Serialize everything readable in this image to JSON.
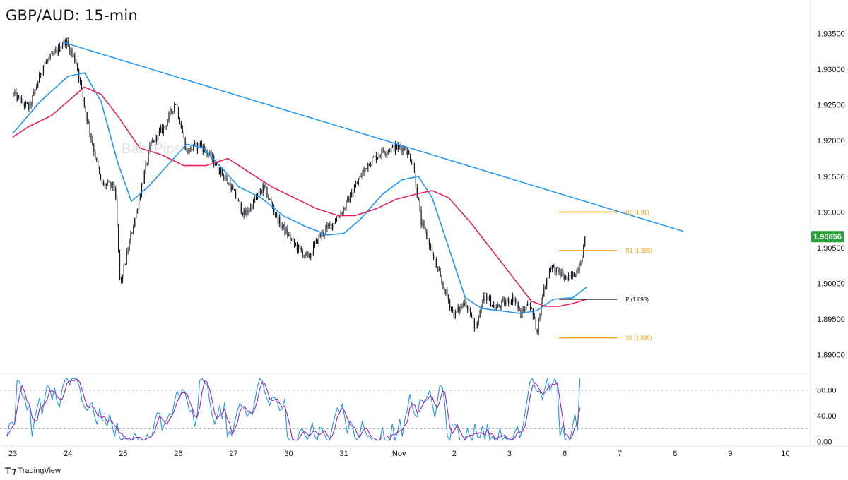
{
  "title": "GBP/AUD: 15-min",
  "watermark": "BabyPips",
  "branding": {
    "logo_icon": "tradingview-logo-icon",
    "label": "TradingView"
  },
  "chart_data": {
    "type": "candlestick",
    "symbol": "GBP/AUD",
    "timeframe": "15-min",
    "x_ticks": [
      "23",
      "24",
      "25",
      "26",
      "27",
      "30",
      "31",
      "Nov",
      "2",
      "3",
      "6",
      "7",
      "8",
      "9",
      "10"
    ],
    "price_axis": {
      "ticks": [
        "1.93500",
        "1.93000",
        "1.92500",
        "1.92000",
        "1.91500",
        "1.91000",
        "1.90500",
        "1.90000",
        "1.89500",
        "1.89000"
      ],
      "ylim": [
        1.8875,
        1.9393
      ]
    },
    "last_price": "1.90656",
    "price_path": [
      [
        0.0,
        1.9265
      ],
      [
        0.3,
        1.9245
      ],
      [
        0.55,
        1.9305
      ],
      [
        0.8,
        1.9325
      ],
      [
        0.95,
        1.934
      ],
      [
        1.15,
        1.931
      ],
      [
        1.35,
        1.923
      ],
      [
        1.6,
        1.914
      ],
      [
        1.85,
        1.9135
      ],
      [
        1.95,
        1.8995
      ],
      [
        2.05,
        1.9035
      ],
      [
        2.25,
        1.9105
      ],
      [
        2.5,
        1.9195
      ],
      [
        2.75,
        1.922
      ],
      [
        2.95,
        1.9255
      ],
      [
        3.15,
        1.9185
      ],
      [
        3.4,
        1.9195
      ],
      [
        3.7,
        1.9165
      ],
      [
        3.95,
        1.9135
      ],
      [
        4.2,
        1.9095
      ],
      [
        4.55,
        1.9135
      ],
      [
        4.8,
        1.909
      ],
      [
        5.1,
        1.9055
      ],
      [
        5.35,
        1.9035
      ],
      [
        5.55,
        1.9065
      ],
      [
        5.8,
        1.9085
      ],
      [
        6.0,
        1.9105
      ],
      [
        6.2,
        1.9135
      ],
      [
        6.45,
        1.917
      ],
      [
        6.7,
        1.9185
      ],
      [
        6.9,
        1.919
      ],
      [
        7.1,
        1.919
      ],
      [
        7.25,
        1.917
      ],
      [
        7.4,
        1.9085
      ],
      [
        7.55,
        1.9055
      ],
      [
        7.75,
        1.9005
      ],
      [
        8.0,
        1.8955
      ],
      [
        8.2,
        1.8975
      ],
      [
        8.4,
        1.8935
      ],
      [
        8.55,
        1.8985
      ],
      [
        8.75,
        1.8965
      ],
      [
        8.95,
        1.8975
      ],
      [
        9.1,
        1.898
      ],
      [
        9.2,
        1.8955
      ],
      [
        9.35,
        1.8975
      ],
      [
        9.5,
        1.8935
      ],
      [
        9.6,
        1.8985
      ],
      [
        9.75,
        1.9025
      ],
      [
        9.9,
        1.9015
      ],
      [
        10.05,
        1.9005
      ],
      [
        10.2,
        1.9015
      ],
      [
        10.3,
        1.9035
      ],
      [
        10.38,
        1.9066
      ]
    ],
    "candles": {
      "count": 420,
      "up_color": "#131722",
      "down_color": "#131722"
    },
    "moving_averages": [
      {
        "color": "#2196f3",
        "values": [
          [
            0.0,
            1.921
          ],
          [
            0.5,
            1.9255
          ],
          [
            1.0,
            1.929
          ],
          [
            1.3,
            1.9295
          ],
          [
            1.6,
            1.9255
          ],
          [
            1.9,
            1.917
          ],
          [
            2.15,
            1.9115
          ],
          [
            2.45,
            1.9135
          ],
          [
            2.8,
            1.9165
          ],
          [
            3.15,
            1.9195
          ],
          [
            3.45,
            1.919
          ],
          [
            3.75,
            1.9165
          ],
          [
            4.1,
            1.9135
          ],
          [
            4.5,
            1.912
          ],
          [
            4.9,
            1.9095
          ],
          [
            5.3,
            1.908
          ],
          [
            5.7,
            1.9068
          ],
          [
            6.0,
            1.907
          ],
          [
            6.3,
            1.909
          ],
          [
            6.7,
            1.9125
          ],
          [
            7.05,
            1.9145
          ],
          [
            7.35,
            1.915
          ],
          [
            7.6,
            1.912
          ],
          [
            7.9,
            1.905
          ],
          [
            8.2,
            1.898
          ],
          [
            8.5,
            1.8965
          ],
          [
            8.8,
            1.8962
          ],
          [
            9.2,
            1.8958
          ],
          [
            9.5,
            1.8962
          ],
          [
            9.8,
            1.8978
          ],
          [
            10.15,
            1.898
          ],
          [
            10.4,
            1.8995
          ]
        ]
      },
      {
        "color": "#e91e63",
        "values": [
          [
            0.0,
            1.9205
          ],
          [
            0.3,
            1.922
          ],
          [
            0.7,
            1.9235
          ],
          [
            1.0,
            1.9255
          ],
          [
            1.3,
            1.9275
          ],
          [
            1.6,
            1.9265
          ],
          [
            1.9,
            1.9235
          ],
          [
            2.3,
            1.919
          ],
          [
            2.7,
            1.918
          ],
          [
            3.1,
            1.9165
          ],
          [
            3.5,
            1.9165
          ],
          [
            3.9,
            1.9175
          ],
          [
            4.3,
            1.9155
          ],
          [
            4.7,
            1.9135
          ],
          [
            5.1,
            1.912
          ],
          [
            5.5,
            1.9105
          ],
          [
            5.9,
            1.9095
          ],
          [
            6.2,
            1.9095
          ],
          [
            6.6,
            1.9105
          ],
          [
            6.95,
            1.9118
          ],
          [
            7.3,
            1.9125
          ],
          [
            7.6,
            1.913
          ],
          [
            7.9,
            1.912
          ],
          [
            8.3,
            1.9085
          ],
          [
            8.7,
            1.9045
          ],
          [
            9.1,
            1.9005
          ],
          [
            9.4,
            1.8975
          ],
          [
            9.65,
            1.8968
          ],
          [
            9.9,
            1.8968
          ],
          [
            10.15,
            1.8972
          ],
          [
            10.4,
            1.8978
          ]
        ]
      }
    ],
    "trendline": {
      "color": "#2196f3",
      "from": [
        0.9,
        1.9338
      ],
      "to": [
        12.15,
        1.9073
      ]
    },
    "pivot_levels": [
      {
        "label": "R2 (1.91)",
        "value": 1.91,
        "color": "#ff9800"
      },
      {
        "label": "R1 (1.905)",
        "value": 1.9046,
        "color": "#ff9800"
      },
      {
        "label": "P (1.898)",
        "value": 1.8978,
        "color": "#131722"
      },
      {
        "label": "S1 (1.892)",
        "value": 1.8924,
        "color": "#ff9800"
      }
    ],
    "pivot_range": [
      9.9,
      10.95
    ],
    "oscillator": {
      "ticks": [
        "80.00",
        "40.00",
        "0.00"
      ],
      "ylim": [
        -5,
        105
      ],
      "bands": [
        80,
        20
      ],
      "line_colors": [
        "#2196f3",
        "#9c27b0"
      ],
      "end_value": 98
    }
  }
}
